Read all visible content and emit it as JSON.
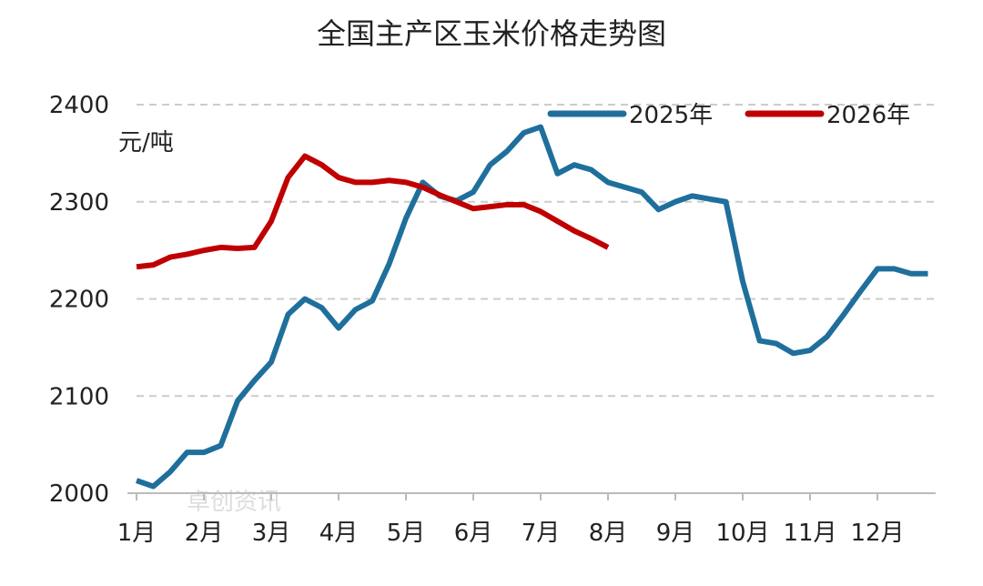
{
  "chart_data": {
    "type": "line",
    "title": "全国主产区玉米价格走势图",
    "y_label": "元/吨",
    "watermark": "卓创资讯",
    "categories": [
      "1月",
      null,
      null,
      null,
      "2月",
      null,
      null,
      null,
      "3月",
      null,
      null,
      null,
      "4月",
      null,
      null,
      null,
      "5月",
      null,
      null,
      null,
      "6月",
      null,
      null,
      null,
      "7月",
      null,
      null,
      null,
      "8月",
      null,
      null,
      null,
      "9月",
      null,
      null,
      null,
      "10月",
      null,
      null,
      null,
      "11月",
      null,
      null,
      null,
      "12月",
      null,
      null,
      null
    ],
    "series": [
      {
        "name": "2025年",
        "color": "#1f6f9c",
        "values": [
          2013,
          2007,
          2022,
          2042,
          2042,
          2049,
          2095,
          2116,
          2135,
          2184,
          2200,
          2191,
          2170,
          2189,
          2198,
          2236,
          2283,
          2320,
          2306,
          2301,
          2310,
          2338,
          2352,
          2371,
          2377,
          2329,
          2338,
          2333,
          2320,
          2315,
          2310,
          2292,
          2300,
          2306,
          2303,
          2300,
          2218,
          2157,
          2154,
          2144,
          2147,
          2161,
          2184,
          2208,
          2231,
          2231,
          2226,
          2226
        ]
      },
      {
        "name": "2026年",
        "color": "#c00000",
        "values": [
          2233,
          2235,
          2243,
          2246,
          2250,
          2253,
          2252,
          2253,
          2280,
          2325,
          2347,
          2338,
          2325,
          2320,
          2320,
          2322,
          2320,
          2315,
          2307,
          2300,
          2293,
          2295,
          2297,
          2297,
          2290,
          2280,
          2270,
          2262,
          2253,
          null,
          null,
          null,
          null,
          null,
          null,
          null,
          null,
          null,
          null,
          null,
          null,
          null,
          null,
          null,
          null,
          null,
          null,
          null
        ]
      }
    ],
    "ylim": [
      2000,
      2400
    ],
    "yticks": [
      2000,
      2100,
      2200,
      2300,
      2400
    ],
    "grid": true,
    "legend": "top-right"
  }
}
